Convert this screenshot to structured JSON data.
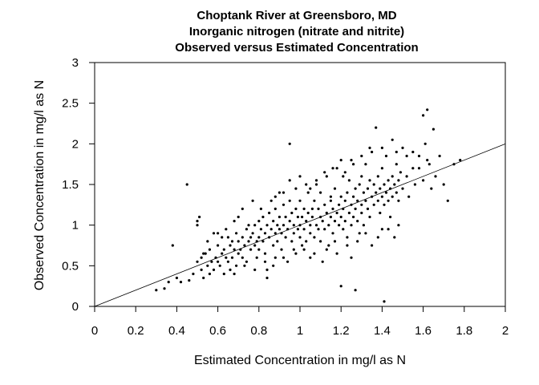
{
  "chart_data": {
    "type": "scatter",
    "title": [
      "Choptank River at Greensboro, MD",
      "Inorganic nitrogen (nitrate and nitrite)",
      "Observed versus Estimated Concentration"
    ],
    "xlabel": "Estimated Concentration in mg/l as N",
    "ylabel": "Observed Concentration in mg/l as N",
    "xlim": [
      0,
      2
    ],
    "ylim": [
      0,
      3
    ],
    "xticks": [
      0,
      0.2,
      0.4,
      0.6,
      0.8,
      1,
      1.2,
      1.4,
      1.6,
      1.8,
      2
    ],
    "xtick_labels": [
      "0",
      "0.2",
      "0.4",
      "0.6",
      "0.8",
      "1",
      "1.2",
      "1.4",
      "1.6",
      "1.8",
      "2"
    ],
    "yticks": [
      0,
      0.5,
      1,
      1.5,
      2,
      2.5,
      3
    ],
    "ytick_labels": [
      "0",
      "0.5",
      "1",
      "1.5",
      "2",
      "2.5",
      "3"
    ],
    "reference_line": {
      "x": [
        0,
        2
      ],
      "y": [
        0,
        2
      ]
    },
    "grid": false,
    "points": [
      [
        0.3,
        0.2
      ],
      [
        0.34,
        0.22
      ],
      [
        0.36,
        0.3
      ],
      [
        0.38,
        0.75
      ],
      [
        0.4,
        0.35
      ],
      [
        0.42,
        0.3
      ],
      [
        0.45,
        1.5
      ],
      [
        0.46,
        0.32
      ],
      [
        0.48,
        0.4
      ],
      [
        0.5,
        0.55
      ],
      [
        0.5,
        1.0
      ],
      [
        0.51,
        1.1
      ],
      [
        0.52,
        0.6
      ],
      [
        0.52,
        0.45
      ],
      [
        0.53,
        0.35
      ],
      [
        0.54,
        0.65
      ],
      [
        0.55,
        0.5
      ],
      [
        0.55,
        0.8
      ],
      [
        0.56,
        0.7
      ],
      [
        0.57,
        0.55
      ],
      [
        0.58,
        0.45
      ],
      [
        0.58,
        0.9
      ],
      [
        0.59,
        0.6
      ],
      [
        0.6,
        0.75
      ],
      [
        0.6,
        0.55
      ],
      [
        0.61,
        0.5
      ],
      [
        0.62,
        0.65
      ],
      [
        0.62,
        0.85
      ],
      [
        0.63,
        0.4
      ],
      [
        0.63,
        0.7
      ],
      [
        0.64,
        0.6
      ],
      [
        0.64,
        0.95
      ],
      [
        0.65,
        0.55
      ],
      [
        0.66,
        0.75
      ],
      [
        0.66,
        0.45
      ],
      [
        0.67,
        0.8
      ],
      [
        0.67,
        0.6
      ],
      [
        0.68,
        1.05
      ],
      [
        0.68,
        0.7
      ],
      [
        0.69,
        0.5
      ],
      [
        0.69,
        0.9
      ],
      [
        0.7,
        0.65
      ],
      [
        0.7,
        0.8
      ],
      [
        0.7,
        1.1
      ],
      [
        0.71,
        0.7
      ],
      [
        0.72,
        0.85
      ],
      [
        0.72,
        0.6
      ],
      [
        0.72,
        1.2
      ],
      [
        0.73,
        0.75
      ],
      [
        0.74,
        0.95
      ],
      [
        0.74,
        0.55
      ],
      [
        0.75,
        0.8
      ],
      [
        0.75,
        1.0
      ],
      [
        0.76,
        0.7
      ],
      [
        0.76,
        0.85
      ],
      [
        0.77,
        0.9
      ],
      [
        0.77,
        1.3
      ],
      [
        0.78,
        0.75
      ],
      [
        0.78,
        1.0
      ],
      [
        0.79,
        0.8
      ],
      [
        0.79,
        0.6
      ],
      [
        0.8,
        0.85
      ],
      [
        0.8,
        1.05
      ],
      [
        0.8,
        0.7
      ],
      [
        0.81,
        0.95
      ],
      [
        0.81,
        1.2
      ],
      [
        0.82,
        0.8
      ],
      [
        0.82,
        1.1
      ],
      [
        0.83,
        0.9
      ],
      [
        0.83,
        0.65
      ],
      [
        0.84,
        1.0
      ],
      [
        0.84,
        0.45
      ],
      [
        0.84,
        0.35
      ],
      [
        0.85,
        0.85
      ],
      [
        0.85,
        1.15
      ],
      [
        0.86,
        0.95
      ],
      [
        0.86,
        1.3
      ],
      [
        0.87,
        0.75
      ],
      [
        0.87,
        1.05
      ],
      [
        0.88,
        0.9
      ],
      [
        0.88,
        1.2
      ],
      [
        0.88,
        0.6
      ],
      [
        0.89,
        1.0
      ],
      [
        0.89,
        0.8
      ],
      [
        0.9,
        0.95
      ],
      [
        0.9,
        1.1
      ],
      [
        0.9,
        1.4
      ],
      [
        0.91,
        0.7
      ],
      [
        0.91,
        0.9
      ],
      [
        0.92,
        1.0
      ],
      [
        0.92,
        1.25
      ],
      [
        0.93,
        0.85
      ],
      [
        0.93,
        1.1
      ],
      [
        0.94,
        0.95
      ],
      [
        0.94,
        0.55
      ],
      [
        0.95,
        1.05
      ],
      [
        0.95,
        1.3
      ],
      [
        0.95,
        2.0
      ],
      [
        0.96,
        0.8
      ],
      [
        0.96,
        1.15
      ],
      [
        0.97,
        0.9
      ],
      [
        0.97,
        1.0
      ],
      [
        0.98,
        1.2
      ],
      [
        0.98,
        0.65
      ],
      [
        0.99,
        0.95
      ],
      [
        0.99,
        1.1
      ],
      [
        1.0,
        1.0
      ],
      [
        1.0,
        0.85
      ],
      [
        1.0,
        1.3
      ],
      [
        1.0,
        1.6
      ],
      [
        1.01,
        1.1
      ],
      [
        1.01,
        0.75
      ],
      [
        1.02,
        0.95
      ],
      [
        1.02,
        1.2
      ],
      [
        1.03,
        1.05
      ],
      [
        1.03,
        0.8
      ],
      [
        1.04,
        1.15
      ],
      [
        1.04,
        1.4
      ],
      [
        1.05,
        0.9
      ],
      [
        1.05,
        1.0
      ],
      [
        1.05,
        0.6
      ],
      [
        1.06,
        1.2
      ],
      [
        1.06,
        1.1
      ],
      [
        1.07,
        0.85
      ],
      [
        1.07,
        1.3
      ],
      [
        1.08,
        1.0
      ],
      [
        1.08,
        1.5
      ],
      [
        1.09,
        0.95
      ],
      [
        1.09,
        1.2
      ],
      [
        1.1,
        1.1
      ],
      [
        1.1,
        0.8
      ],
      [
        1.1,
        1.4
      ],
      [
        1.11,
        1.05
      ],
      [
        1.11,
        0.55
      ],
      [
        1.12,
        1.25
      ],
      [
        1.12,
        0.95
      ],
      [
        1.13,
        1.15
      ],
      [
        1.13,
        1.6
      ],
      [
        1.14,
        1.0
      ],
      [
        1.14,
        0.75
      ],
      [
        1.15,
        1.3
      ],
      [
        1.15,
        1.1
      ],
      [
        1.16,
        1.2
      ],
      [
        1.16,
        0.9
      ],
      [
        1.17,
        1.05
      ],
      [
        1.17,
        1.45
      ],
      [
        1.18,
        1.15
      ],
      [
        1.18,
        0.65
      ],
      [
        1.19,
        1.25
      ],
      [
        1.19,
        1.0
      ],
      [
        1.2,
        1.1
      ],
      [
        1.2,
        1.35
      ],
      [
        1.2,
        1.8
      ],
      [
        1.21,
        0.95
      ],
      [
        1.21,
        1.2
      ],
      [
        1.22,
        1.3
      ],
      [
        1.22,
        1.05
      ],
      [
        1.23,
        1.4
      ],
      [
        1.23,
        0.85
      ],
      [
        1.24,
        1.15
      ],
      [
        1.24,
        1.55
      ],
      [
        1.25,
        1.25
      ],
      [
        1.25,
        1.0
      ],
      [
        1.25,
        0.6
      ],
      [
        1.26,
        1.35
      ],
      [
        1.26,
        1.1
      ],
      [
        1.27,
        1.2
      ],
      [
        1.27,
        1.45
      ],
      [
        1.28,
        1.05
      ],
      [
        1.28,
        1.3
      ],
      [
        1.29,
        1.5
      ],
      [
        1.29,
        0.9
      ],
      [
        1.3,
        1.25
      ],
      [
        1.3,
        1.15
      ],
      [
        1.3,
        1.6
      ],
      [
        1.31,
        1.4
      ],
      [
        1.31,
        1.0
      ],
      [
        1.32,
        1.3
      ],
      [
        1.32,
        1.75
      ],
      [
        1.33,
        1.2
      ],
      [
        1.33,
        1.45
      ],
      [
        1.34,
        1.1
      ],
      [
        1.34,
        1.55
      ],
      [
        1.35,
        1.35
      ],
      [
        1.35,
        0.75
      ],
      [
        1.36,
        1.25
      ],
      [
        1.36,
        1.5
      ],
      [
        1.37,
        1.4
      ],
      [
        1.37,
        2.2
      ],
      [
        1.38,
        1.3
      ],
      [
        1.38,
        1.6
      ],
      [
        1.39,
        1.15
      ],
      [
        1.39,
        1.45
      ],
      [
        1.4,
        1.35
      ],
      [
        1.4,
        1.7
      ],
      [
        1.4,
        0.95
      ],
      [
        1.41,
        1.5
      ],
      [
        1.41,
        1.25
      ],
      [
        1.42,
        1.4
      ],
      [
        1.42,
        1.85
      ],
      [
        1.43,
        1.3
      ],
      [
        1.43,
        1.55
      ],
      [
        1.44,
        1.45
      ],
      [
        1.44,
        1.1
      ],
      [
        1.45,
        1.6
      ],
      [
        1.45,
        1.35
      ],
      [
        1.46,
        1.5
      ],
      [
        1.46,
        0.85
      ],
      [
        1.47,
        1.4
      ],
      [
        1.47,
        1.75
      ],
      [
        1.48,
        1.55
      ],
      [
        1.48,
        1.3
      ],
      [
        1.49,
        1.65
      ],
      [
        1.5,
        1.45
      ],
      [
        1.5,
        1.95
      ],
      [
        1.52,
        1.6
      ],
      [
        1.53,
        1.35
      ],
      [
        1.55,
        1.7
      ],
      [
        1.56,
        1.5
      ],
      [
        1.58,
        1.85
      ],
      [
        1.6,
        1.55
      ],
      [
        1.6,
        2.35
      ],
      [
        1.61,
        2.0
      ],
      [
        1.62,
        2.42
      ],
      [
        1.63,
        1.75
      ],
      [
        1.65,
        2.18
      ],
      [
        1.66,
        1.6
      ],
      [
        1.68,
        1.85
      ],
      [
        1.7,
        1.5
      ],
      [
        1.72,
        1.3
      ],
      [
        1.75,
        1.75
      ],
      [
        1.78,
        1.8
      ],
      [
        0.95,
        1.55
      ],
      [
        1.05,
        1.45
      ],
      [
        1.15,
        1.35
      ],
      [
        1.18,
        1.7
      ],
      [
        1.22,
        1.65
      ],
      [
        1.26,
        1.75
      ],
      [
        1.34,
        1.95
      ],
      [
        1.45,
        2.05
      ],
      [
        1.55,
        1.9
      ],
      [
        0.5,
        1.05
      ],
      [
        0.53,
        0.65
      ],
      [
        0.56,
        0.4
      ],
      [
        0.6,
        0.9
      ],
      [
        0.65,
        0.85
      ],
      [
        0.68,
        0.4
      ],
      [
        0.73,
        0.5
      ],
      [
        0.78,
        0.45
      ],
      [
        0.83,
        0.55
      ],
      [
        0.87,
        0.5
      ],
      [
        0.92,
        0.6
      ],
      [
        0.97,
        0.7
      ],
      [
        1.02,
        0.7
      ],
      [
        1.07,
        0.65
      ],
      [
        1.13,
        0.7
      ],
      [
        1.17,
        0.8
      ],
      [
        1.23,
        0.75
      ],
      [
        1.28,
        0.8
      ],
      [
        1.32,
        0.9
      ],
      [
        1.38,
        0.85
      ],
      [
        1.43,
        0.95
      ],
      [
        1.48,
        1.0
      ],
      [
        1.2,
        0.25
      ],
      [
        1.27,
        0.2
      ],
      [
        1.41,
        0.06
      ],
      [
        0.88,
        1.35
      ],
      [
        0.92,
        1.4
      ],
      [
        0.98,
        1.45
      ],
      [
        1.03,
        1.5
      ],
      [
        1.08,
        1.55
      ],
      [
        1.12,
        1.65
      ],
      [
        1.16,
        1.7
      ],
      [
        1.21,
        1.6
      ],
      [
        1.25,
        1.8
      ],
      [
        1.3,
        1.85
      ],
      [
        1.35,
        1.9
      ],
      [
        1.4,
        1.95
      ],
      [
        1.47,
        1.9
      ],
      [
        1.52,
        1.85
      ],
      [
        1.58,
        1.7
      ],
      [
        1.62,
        1.8
      ],
      [
        1.64,
        1.45
      ]
    ]
  }
}
